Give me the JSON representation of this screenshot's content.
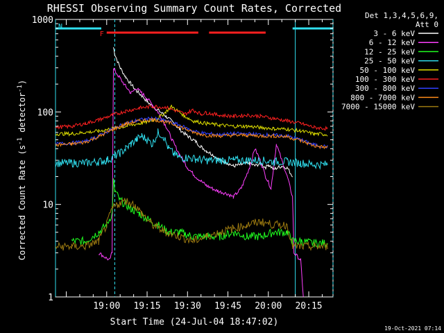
{
  "chart_data": {
    "type": "line",
    "title": "RHESSI Observing Summary Count Rates, Corrected",
    "xlabel": "Start Time (24-Jul-04 18:47:02)",
    "ylabel_main": "Corrected Count Rate (s",
    "ylabel_sup1": "-1",
    "ylabel_mid": " detector",
    "ylabel_sup2": "-1",
    "ylabel_end": ")",
    "yscale": "log",
    "ylim": [
      1,
      1000
    ],
    "y_ticks": [
      {
        "value": 1,
        "label": "1"
      },
      {
        "value": 10,
        "label": "10"
      },
      {
        "value": 100,
        "label": "100"
      },
      {
        "value": 1000,
        "label": "1000"
      }
    ],
    "xlim_minutes": [
      -6,
      97
    ],
    "x_ticks": [
      {
        "value": 13,
        "label": "19:00"
      },
      {
        "value": 28,
        "label": "19:15"
      },
      {
        "value": 43,
        "label": "19:30"
      },
      {
        "value": 58,
        "label": "19:45"
      },
      {
        "value": 73,
        "label": "20:00"
      },
      {
        "value": 88,
        "label": "20:15"
      }
    ],
    "detector_label": "Det 1,3,4,5,6,9,",
    "attenuator_label": "Att 0",
    "timestamp": "19-Oct-2021 07:14",
    "flags": [
      {
        "label": "F",
        "color": "#ff2020",
        "segments": [
          [
            13,
            47
          ],
          [
            51,
            72
          ]
        ]
      },
      {
        "label": "N",
        "color": "#30e0f0",
        "segments": [
          [
            -6,
            11
          ],
          [
            82,
            97
          ]
        ]
      }
    ],
    "night_markers": [
      -6,
      83
    ],
    "saa_markers": [
      16,
      97
    ],
    "series": [
      {
        "name": "3 - 6 keV",
        "color": "#ffffff",
        "x": [
          -6,
          15,
          15.5,
          16,
          18,
          20,
          22,
          24,
          26,
          28,
          30,
          32,
          35,
          38,
          40,
          43,
          46,
          48,
          50,
          52,
          55,
          58,
          60,
          63,
          66,
          68,
          70,
          72,
          73,
          75,
          78,
          80,
          82
        ],
        "y": [
          null,
          null,
          500,
          420,
          300,
          240,
          200,
          170,
          150,
          130,
          115,
          105,
          90,
          75,
          65,
          55,
          48,
          42,
          38,
          35,
          30,
          28,
          26,
          27,
          28,
          26,
          28,
          25,
          27,
          24,
          26,
          25,
          20
        ]
      },
      {
        "name": "6 - 12 keV",
        "color": "#ff40ff",
        "x": [
          -6,
          10,
          14,
          15,
          15.5,
          16,
          18,
          20,
          22,
          24,
          26,
          28,
          30,
          32,
          35,
          38,
          40,
          43,
          46,
          50,
          54,
          58,
          60,
          63,
          66,
          68,
          70,
          72,
          74,
          76,
          78,
          80,
          82,
          82.5,
          85,
          86
        ],
        "y": [
          null,
          3,
          2.5,
          3,
          300,
          280,
          230,
          190,
          160,
          180,
          160,
          140,
          120,
          100,
          70,
          45,
          35,
          25,
          20,
          16,
          14,
          13,
          12,
          15,
          25,
          40,
          30,
          20,
          15,
          45,
          30,
          20,
          12,
          3,
          2.5,
          1
        ]
      },
      {
        "name": "12 - 25 keV",
        "color": "#20ff20",
        "x": [
          -6,
          0,
          5,
          10,
          13,
          15,
          15.5,
          16,
          18,
          20,
          22,
          25,
          28,
          32,
          36,
          40,
          45,
          50,
          55,
          60,
          65,
          70,
          75,
          80,
          82,
          85,
          90,
          95
        ],
        "y": [
          null,
          4,
          4,
          5,
          6,
          8,
          18,
          14,
          11,
          10,
          9,
          8,
          7,
          6,
          5,
          5,
          4.5,
          4.5,
          4.5,
          5,
          4.5,
          4.5,
          5,
          5,
          4,
          4,
          3.8,
          3.8
        ]
      },
      {
        "name": "25 - 50 keV",
        "color": "#30e0f0",
        "x": [
          -6,
          0,
          5,
          10,
          13,
          15,
          18,
          20,
          22,
          24,
          26,
          28,
          30,
          32,
          34,
          36,
          38,
          40,
          43,
          46,
          50,
          55,
          60,
          65,
          70,
          75,
          80,
          85,
          90,
          95
        ],
        "y": [
          28,
          28,
          28,
          29,
          30,
          32,
          36,
          40,
          45,
          50,
          55,
          50,
          45,
          60,
          55,
          40,
          35,
          32,
          32,
          31,
          30,
          30,
          30,
          30,
          30,
          29,
          29,
          28,
          27,
          27
        ]
      },
      {
        "name": "50 - 100 keV",
        "color": "#e0e000",
        "x": [
          -6,
          0,
          5,
          10,
          15,
          20,
          25,
          28,
          32,
          35,
          37,
          39,
          42,
          45,
          50,
          55,
          60,
          65,
          70,
          75,
          80,
          85,
          90,
          95
        ],
        "y": [
          58,
          58,
          60,
          62,
          66,
          70,
          75,
          78,
          85,
          100,
          115,
          105,
          90,
          80,
          75,
          72,
          70,
          70,
          68,
          66,
          65,
          62,
          58,
          57
        ]
      },
      {
        "name": "100 - 300 keV",
        "color": "#ff2020",
        "x": [
          -6,
          0,
          5,
          10,
          15,
          20,
          25,
          30,
          35,
          40,
          42,
          45,
          48,
          50,
          55,
          60,
          65,
          70,
          75,
          80,
          85,
          90,
          95
        ],
        "y": [
          68,
          70,
          75,
          82,
          92,
          102,
          110,
          115,
          112,
          100,
          95,
          105,
          95,
          98,
          92,
          90,
          92,
          90,
          85,
          80,
          75,
          68,
          66
        ]
      },
      {
        "name": "300 - 800 keV",
        "color": "#3040ff",
        "x": [
          -6,
          0,
          5,
          10,
          15,
          20,
          25,
          30,
          35,
          40,
          45,
          50,
          55,
          60,
          65,
          70,
          75,
          80,
          85,
          90,
          95
        ],
        "y": [
          45,
          46,
          48,
          55,
          65,
          75,
          82,
          85,
          80,
          72,
          62,
          58,
          57,
          58,
          58,
          57,
          56,
          55,
          50,
          44,
          42
        ]
      },
      {
        "name": "800 - 7000 keV",
        "color": "#ff8c1a",
        "x": [
          -6,
          0,
          5,
          10,
          15,
          20,
          25,
          30,
          35,
          40,
          45,
          50,
          55,
          60,
          65,
          70,
          75,
          80,
          85,
          90,
          95
        ],
        "y": [
          44,
          45,
          47,
          54,
          64,
          74,
          80,
          83,
          78,
          70,
          60,
          56,
          55,
          56,
          56,
          55,
          55,
          54,
          49,
          43,
          41
        ]
      },
      {
        "name": "7000 - 15000 keV",
        "color": "#9c7a10",
        "x": [
          -6,
          0,
          5,
          10,
          13,
          15,
          17,
          20,
          23,
          26,
          30,
          35,
          40,
          45,
          50,
          55,
          60,
          65,
          70,
          75,
          80,
          82,
          85,
          90,
          95
        ],
        "y": [
          3.5,
          3.5,
          3.5,
          4,
          6,
          9,
          10,
          11,
          10,
          8,
          6,
          5,
          4.5,
          4,
          4.5,
          5,
          5.5,
          6,
          6.5,
          6,
          6,
          3.5,
          3.5,
          3.5,
          3.5
        ]
      }
    ]
  }
}
